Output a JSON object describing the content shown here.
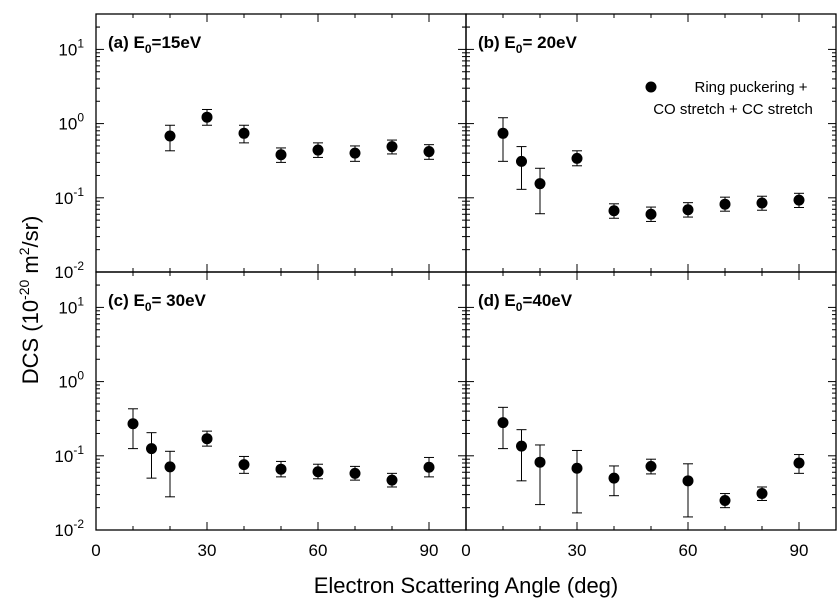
{
  "figure": {
    "xlabel": "Electron Scattering Angle (deg)",
    "ylabel_main": "DCS (10",
    "ylabel_exp": "-20",
    "ylabel_unit": " m",
    "ylabel_exp2": "2",
    "ylabel_tail": "/sr)"
  },
  "legend": {
    "line1": "Ring puckering +",
    "line2": "CO stretch + CC stretch"
  },
  "xticks": [
    "0",
    "30",
    "60",
    "90"
  ],
  "yticks": [
    {
      "base": "10",
      "exp": "1"
    },
    {
      "base": "10",
      "exp": "0"
    },
    {
      "base": "10",
      "exp": "-1"
    },
    {
      "base": "10",
      "exp": "-2"
    }
  ],
  "chart_data": [
    {
      "type": "scatter",
      "panel_label": "(a) E",
      "panel_sub": "0",
      "panel_value": "=15eV",
      "xlim": [
        0,
        100
      ],
      "ylim": [
        0.01,
        30
      ],
      "yscale": "log",
      "points": [
        {
          "x": 20,
          "y": 0.68,
          "lo": 0.43,
          "hi": 0.95
        },
        {
          "x": 30,
          "y": 1.22,
          "lo": 0.95,
          "hi": 1.55
        },
        {
          "x": 40,
          "y": 0.74,
          "lo": 0.55,
          "hi": 0.95
        },
        {
          "x": 50,
          "y": 0.38,
          "lo": 0.3,
          "hi": 0.47
        },
        {
          "x": 60,
          "y": 0.44,
          "lo": 0.35,
          "hi": 0.55
        },
        {
          "x": 70,
          "y": 0.4,
          "lo": 0.31,
          "hi": 0.5
        },
        {
          "x": 80,
          "y": 0.49,
          "lo": 0.39,
          "hi": 0.6
        },
        {
          "x": 90,
          "y": 0.42,
          "lo": 0.33,
          "hi": 0.52
        }
      ]
    },
    {
      "type": "scatter",
      "panel_label": "(b) E",
      "panel_sub": "0",
      "panel_value": "= 20eV",
      "xlim": [
        0,
        100
      ],
      "ylim": [
        0.01,
        30
      ],
      "yscale": "log",
      "points": [
        {
          "x": 10,
          "y": 0.74,
          "lo": 0.31,
          "hi": 1.2
        },
        {
          "x": 15,
          "y": 0.31,
          "lo": 0.13,
          "hi": 0.49
        },
        {
          "x": 20,
          "y": 0.155,
          "lo": 0.061,
          "hi": 0.25
        },
        {
          "x": 30,
          "y": 0.34,
          "lo": 0.27,
          "hi": 0.43
        },
        {
          "x": 40,
          "y": 0.067,
          "lo": 0.053,
          "hi": 0.083
        },
        {
          "x": 50,
          "y": 0.06,
          "lo": 0.048,
          "hi": 0.075
        },
        {
          "x": 60,
          "y": 0.069,
          "lo": 0.055,
          "hi": 0.086
        },
        {
          "x": 70,
          "y": 0.082,
          "lo": 0.066,
          "hi": 0.102
        },
        {
          "x": 80,
          "y": 0.085,
          "lo": 0.068,
          "hi": 0.105
        },
        {
          "x": 90,
          "y": 0.093,
          "lo": 0.074,
          "hi": 0.115
        }
      ]
    },
    {
      "type": "scatter",
      "panel_label": "(c) E",
      "panel_sub": "0",
      "panel_value": "= 30eV",
      "xlim": [
        0,
        100
      ],
      "ylim": [
        0.01,
        30
      ],
      "yscale": "log",
      "points": [
        {
          "x": 10,
          "y": 0.27,
          "lo": 0.125,
          "hi": 0.43
        },
        {
          "x": 15,
          "y": 0.125,
          "lo": 0.05,
          "hi": 0.205
        },
        {
          "x": 20,
          "y": 0.071,
          "lo": 0.028,
          "hi": 0.115
        },
        {
          "x": 30,
          "y": 0.17,
          "lo": 0.135,
          "hi": 0.215
        },
        {
          "x": 40,
          "y": 0.076,
          "lo": 0.058,
          "hi": 0.098
        },
        {
          "x": 50,
          "y": 0.066,
          "lo": 0.052,
          "hi": 0.084
        },
        {
          "x": 60,
          "y": 0.061,
          "lo": 0.049,
          "hi": 0.077
        },
        {
          "x": 70,
          "y": 0.058,
          "lo": 0.047,
          "hi": 0.072
        },
        {
          "x": 80,
          "y": 0.047,
          "lo": 0.038,
          "hi": 0.058
        },
        {
          "x": 90,
          "y": 0.07,
          "lo": 0.052,
          "hi": 0.095
        }
      ]
    },
    {
      "type": "scatter",
      "panel_label": "(d) E",
      "panel_sub": "0",
      "panel_value": "=40eV",
      "xlim": [
        0,
        100
      ],
      "ylim": [
        0.01,
        30
      ],
      "yscale": "log",
      "points": [
        {
          "x": 10,
          "y": 0.28,
          "lo": 0.125,
          "hi": 0.45
        },
        {
          "x": 15,
          "y": 0.135,
          "lo": 0.046,
          "hi": 0.225
        },
        {
          "x": 20,
          "y": 0.082,
          "lo": 0.022,
          "hi": 0.14
        },
        {
          "x": 30,
          "y": 0.068,
          "lo": 0.017,
          "hi": 0.118
        },
        {
          "x": 40,
          "y": 0.05,
          "lo": 0.029,
          "hi": 0.073
        },
        {
          "x": 50,
          "y": 0.072,
          "lo": 0.057,
          "hi": 0.09
        },
        {
          "x": 60,
          "y": 0.046,
          "lo": 0.015,
          "hi": 0.078
        },
        {
          "x": 70,
          "y": 0.025,
          "lo": 0.02,
          "hi": 0.031
        },
        {
          "x": 80,
          "y": 0.031,
          "lo": 0.025,
          "hi": 0.038
        },
        {
          "x": 90,
          "y": 0.08,
          "lo": 0.058,
          "hi": 0.104
        }
      ]
    }
  ]
}
